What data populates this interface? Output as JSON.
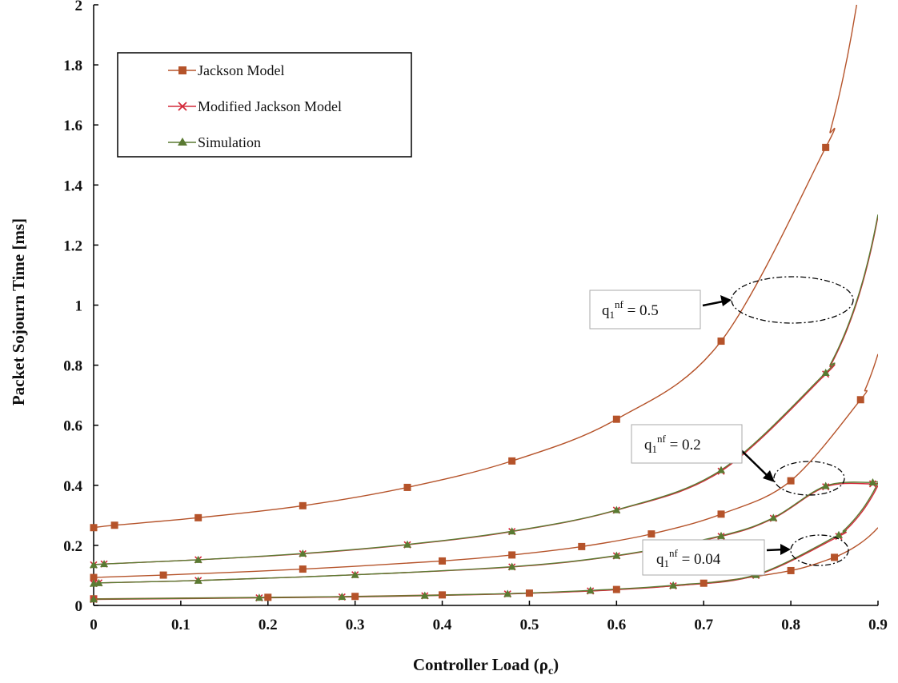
{
  "chart_data": {
    "type": "line",
    "title": "",
    "xlabel": "Controller Load (ρc)",
    "ylabel": "Packet Sojourn Time [ms]",
    "xlim": [
      0,
      0.9
    ],
    "ylim": [
      0,
      2
    ],
    "x_ticks": [
      "0",
      "0.1",
      "0.2",
      "0.3",
      "0.4",
      "0.5",
      "0.6",
      "0.7",
      "0.8",
      "0.9"
    ],
    "y_ticks": [
      "0",
      "0.2",
      "0.4",
      "0.6",
      "0.8",
      "1",
      "1.2",
      "1.4",
      "1.6",
      "1.8",
      "2"
    ],
    "grid": false,
    "legend_position": "top-left",
    "legend": [
      {
        "name": "Jackson Model",
        "color": "#b5532a",
        "marker": "square"
      },
      {
        "name": "Modified Jackson Model",
        "color": "#d42a3a",
        "marker": "x"
      },
      {
        "name": "Simulation",
        "color": "#5a7a32",
        "marker": "triangle"
      }
    ],
    "annotations": [
      {
        "label_main": "q",
        "label_sub": "1",
        "label_sup": "nf",
        "label_tail": " = 0.5"
      },
      {
        "label_main": "q",
        "label_sub": "1",
        "label_sup": "nf",
        "label_tail": " = 0.2"
      },
      {
        "label_main": "q",
        "label_sub": "1",
        "label_sup": "nf",
        "label_tail": " = 0.04"
      }
    ],
    "series": [
      {
        "name": "Jackson Model",
        "group": "q1nf = 0.5",
        "color": "#b5532a",
        "marker": "square",
        "x": [
          0,
          0.024,
          0.12,
          0.24,
          0.36,
          0.48,
          0.6,
          0.72,
          0.84
        ],
        "y": [
          0.259,
          0.267,
          0.292,
          0.332,
          0.393,
          0.481,
          0.62,
          0.88,
          1.525
        ]
      },
      {
        "name": "Jackson Model",
        "group": "q1nf = 0.2",
        "color": "#b5532a",
        "marker": "square",
        "x": [
          0,
          0.08,
          0.24,
          0.4,
          0.48,
          0.56,
          0.64,
          0.72,
          0.8,
          0.88
        ],
        "y": [
          0.093,
          0.101,
          0.121,
          0.148,
          0.168,
          0.196,
          0.238,
          0.304,
          0.415,
          0.685
        ]
      },
      {
        "name": "Jackson Model",
        "group": "q1nf = 0.04",
        "color": "#b5532a",
        "marker": "square",
        "x": [
          0,
          0.2,
          0.3,
          0.4,
          0.5,
          0.6,
          0.7,
          0.8,
          0.85
        ],
        "y": [
          0.022,
          0.027,
          0.03,
          0.035,
          0.041,
          0.053,
          0.074,
          0.116,
          0.16
        ]
      },
      {
        "name": "Modified Jackson Model",
        "group": "q1nf = 0.5",
        "color": "#d42a3a",
        "marker": "x",
        "x": [
          0,
          0.012,
          0.12,
          0.24,
          0.36,
          0.48,
          0.6,
          0.72,
          0.84
        ],
        "y": [
          0.135,
          0.138,
          0.152,
          0.172,
          0.202,
          0.246,
          0.317,
          0.447,
          0.77
        ]
      },
      {
        "name": "Modified Jackson Model",
        "group": "q1nf = 0.2",
        "color": "#d42a3a",
        "marker": "x",
        "x": [
          0,
          0.006,
          0.12,
          0.3,
          0.48,
          0.6,
          0.72,
          0.78,
          0.84,
          0.894
        ],
        "y": [
          0.073,
          0.075,
          0.083,
          0.102,
          0.128,
          0.165,
          0.23,
          0.29,
          0.395,
          0.405
        ]
      },
      {
        "name": "Modified Jackson Model",
        "group": "q1nf = 0.04",
        "color": "#d42a3a",
        "marker": "x",
        "x": [
          0,
          0.19,
          0.285,
          0.38,
          0.475,
          0.57,
          0.665,
          0.76,
          0.855
        ],
        "y": [
          0.02,
          0.025,
          0.028,
          0.032,
          0.038,
          0.048,
          0.065,
          0.1,
          0.23
        ]
      },
      {
        "name": "Simulation",
        "group": "q1nf = 0.5",
        "color": "#5a7a32",
        "marker": "triangle",
        "x": [
          0,
          0.012,
          0.12,
          0.24,
          0.36,
          0.48,
          0.6,
          0.72,
          0.84
        ],
        "y": [
          0.135,
          0.138,
          0.152,
          0.173,
          0.203,
          0.247,
          0.318,
          0.451,
          0.775
        ]
      },
      {
        "name": "Simulation",
        "group": "q1nf = 0.2",
        "color": "#5a7a32",
        "marker": "triangle",
        "x": [
          0,
          0.006,
          0.12,
          0.3,
          0.48,
          0.6,
          0.72,
          0.78,
          0.84,
          0.894
        ],
        "y": [
          0.073,
          0.075,
          0.083,
          0.102,
          0.129,
          0.166,
          0.232,
          0.292,
          0.398,
          0.41
        ]
      },
      {
        "name": "Simulation",
        "group": "q1nf = 0.04",
        "color": "#5a7a32",
        "marker": "triangle",
        "x": [
          0,
          0.19,
          0.285,
          0.38,
          0.475,
          0.57,
          0.665,
          0.76,
          0.855
        ],
        "y": [
          0.021,
          0.026,
          0.029,
          0.033,
          0.039,
          0.05,
          0.067,
          0.102,
          0.235
        ]
      }
    ]
  }
}
